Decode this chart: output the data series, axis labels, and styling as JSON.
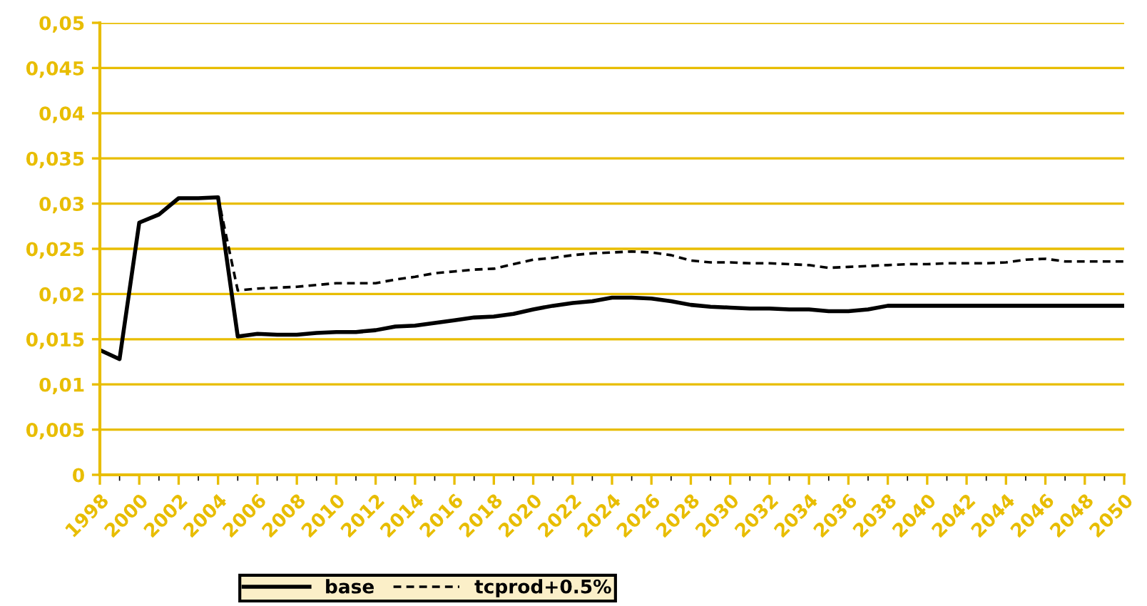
{
  "chart_data": {
    "type": "line",
    "x": [
      1998,
      1999,
      2000,
      2001,
      2002,
      2003,
      2004,
      2005,
      2006,
      2007,
      2008,
      2009,
      2010,
      2011,
      2012,
      2013,
      2014,
      2015,
      2016,
      2017,
      2018,
      2019,
      2020,
      2021,
      2022,
      2023,
      2024,
      2025,
      2026,
      2027,
      2028,
      2029,
      2030,
      2031,
      2032,
      2033,
      2034,
      2035,
      2036,
      2037,
      2038,
      2039,
      2040,
      2041,
      2042,
      2043,
      2044,
      2045,
      2046,
      2047,
      2048,
      2049,
      2050
    ],
    "series": [
      {
        "name": "base",
        "color": "#000000",
        "line_style": "solid",
        "values": [
          0.0138,
          0.0128,
          0.0279,
          0.0288,
          0.0306,
          0.0306,
          0.0307,
          0.0153,
          0.0156,
          0.0155,
          0.0155,
          0.0157,
          0.0158,
          0.0158,
          0.016,
          0.0164,
          0.0165,
          0.0168,
          0.0171,
          0.0174,
          0.0175,
          0.0178,
          0.0183,
          0.0187,
          0.019,
          0.0192,
          0.0196,
          0.0196,
          0.0195,
          0.0192,
          0.0188,
          0.0186,
          0.0185,
          0.0184,
          0.0184,
          0.0183,
          0.0183,
          0.0181,
          0.0181,
          0.0183,
          0.0187,
          0.0187,
          0.0187,
          0.0187,
          0.0187,
          0.0187,
          0.0187,
          0.0187,
          0.0187,
          0.0187,
          0.0187,
          0.0187,
          0.0187
        ]
      },
      {
        "name": "tcprod+0.5%",
        "color": "#000000",
        "line_style": "dotted",
        "values": [
          0.0138,
          0.0128,
          0.0279,
          0.0288,
          0.0306,
          0.0306,
          0.0307,
          0.0204,
          0.0206,
          0.0207,
          0.0208,
          0.021,
          0.0212,
          0.0212,
          0.0212,
          0.0216,
          0.0219,
          0.0223,
          0.0225,
          0.0227,
          0.0228,
          0.0233,
          0.0238,
          0.024,
          0.0243,
          0.0245,
          0.0246,
          0.0247,
          0.0246,
          0.0243,
          0.0237,
          0.0235,
          0.0235,
          0.0234,
          0.0234,
          0.0233,
          0.0232,
          0.0229,
          0.023,
          0.0231,
          0.0232,
          0.0233,
          0.0233,
          0.0234,
          0.0234,
          0.0234,
          0.0235,
          0.0238,
          0.0239,
          0.0236,
          0.0236,
          0.0236,
          0.0236
        ]
      }
    ],
    "xlim": [
      1998,
      2050
    ],
    "xticks": [
      1998,
      2000,
      2002,
      2004,
      2006,
      2008,
      2010,
      2012,
      2014,
      2016,
      2018,
      2020,
      2022,
      2024,
      2026,
      2028,
      2030,
      2032,
      2034,
      2036,
      2038,
      2040,
      2042,
      2044,
      2046,
      2048,
      2050
    ],
    "ylim": [
      0,
      0.05
    ],
    "yticks": [
      {
        "value": 0,
        "label": "0"
      },
      {
        "value": 0.005,
        "label": "0,005"
      },
      {
        "value": 0.01,
        "label": "0,01"
      },
      {
        "value": 0.015,
        "label": "0,015"
      },
      {
        "value": 0.02,
        "label": "0,02"
      },
      {
        "value": 0.025,
        "label": "0,025"
      },
      {
        "value": 0.03,
        "label": "0,03"
      },
      {
        "value": 0.035,
        "label": "0,035"
      },
      {
        "value": 0.04,
        "label": "0,04"
      },
      {
        "value": 0.045,
        "label": "0,045"
      },
      {
        "value": 0.05,
        "label": "0,05"
      }
    ],
    "grid": "y",
    "legend": "bottom",
    "marker": "none"
  }
}
